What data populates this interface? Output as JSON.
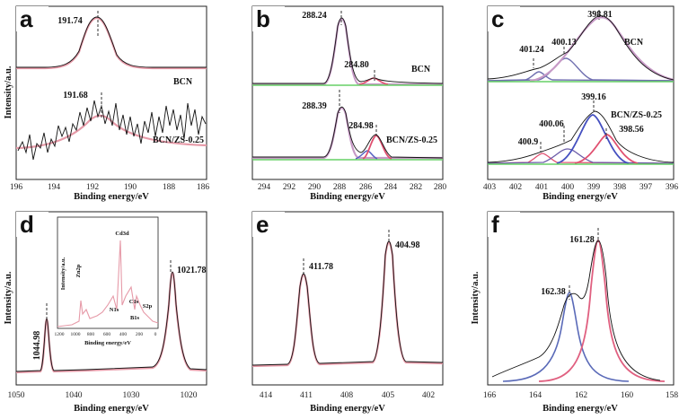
{
  "chart_data": [
    {
      "id": "a",
      "type": "line",
      "letter": "a",
      "xlabel": "Binding energy/eV",
      "ylabel": "Intensity/a.u.",
      "xlim": [
        196,
        186
      ],
      "xticks": [
        "196",
        "194",
        "192",
        "190",
        "188",
        "186"
      ],
      "peak_labels": [
        "191.74",
        "191.68"
      ],
      "series": [
        {
          "name": "BCN",
          "peak": 191.74
        },
        {
          "name": "BCN/ZS-0.25",
          "peak": 191.68
        }
      ]
    },
    {
      "id": "b",
      "type": "line",
      "letter": "b",
      "xlabel": "Binding energy/eV",
      "xlim": [
        295,
        280
      ],
      "xticks": [
        "294",
        "292",
        "290",
        "288",
        "286",
        "284",
        "282",
        "280"
      ],
      "peak_labels": [
        "288.24",
        "284.80",
        "288.39",
        "284.98"
      ],
      "series": [
        {
          "name": "BCN",
          "peaks": [
            288.24,
            284.8
          ]
        },
        {
          "name": "BCN/ZS-0.25",
          "peaks": [
            288.39,
            284.98
          ]
        }
      ]
    },
    {
      "id": "c",
      "type": "line",
      "letter": "c",
      "xlabel": "Binding energy/eV",
      "xlim": [
        403,
        396
      ],
      "xticks": [
        "403",
        "402",
        "401",
        "400",
        "399",
        "398",
        "397",
        "396"
      ],
      "peak_labels": [
        "398.81",
        "401.24",
        "400.13",
        "399.16",
        "400.06",
        "400.9",
        "398.56"
      ],
      "series": [
        {
          "name": "BCN",
          "peaks": [
            398.81,
            400.13,
            401.24
          ]
        },
        {
          "name": "BCN/ZS-0.25",
          "peaks": [
            399.16,
            398.56,
            400.06,
            400.9
          ]
        }
      ]
    },
    {
      "id": "d",
      "type": "line",
      "letter": "d",
      "xlabel": "Binding energy/eV",
      "ylabel": "Intensity/a.u.",
      "xlim": [
        1050,
        1017
      ],
      "xticks": [
        "1050",
        "1040",
        "1030",
        "1020"
      ],
      "peak_labels": [
        "1044.98",
        "1021.78"
      ],
      "peaks": [
        1044.98,
        1021.78
      ],
      "inset": {
        "xlabel": "Binding energy/eV",
        "ylabel": "Intensity/a.u.",
        "xticks": [
          "1200",
          "1000",
          "800",
          "600",
          "400",
          "200",
          "0"
        ],
        "labels": [
          "Zn2p",
          "Cd3d",
          "N1s",
          "C1s",
          "S2p",
          "B1s"
        ]
      }
    },
    {
      "id": "e",
      "type": "line",
      "letter": "e",
      "xlabel": "Binding energy/eV",
      "xlim": [
        415,
        401
      ],
      "xticks": [
        "414",
        "411",
        "408",
        "405",
        "402"
      ],
      "peak_labels": [
        "411.78",
        "404.98"
      ],
      "peaks": [
        411.78,
        404.98
      ]
    },
    {
      "id": "f",
      "type": "line",
      "letter": "f",
      "xlabel": "Binding energy/eV",
      "xlim": [
        166,
        158
      ],
      "xticks": [
        "166",
        "164",
        "162",
        "160",
        "158"
      ],
      "peak_labels": [
        "161.28",
        "162.38"
      ],
      "peaks": [
        161.28,
        162.38
      ]
    }
  ]
}
